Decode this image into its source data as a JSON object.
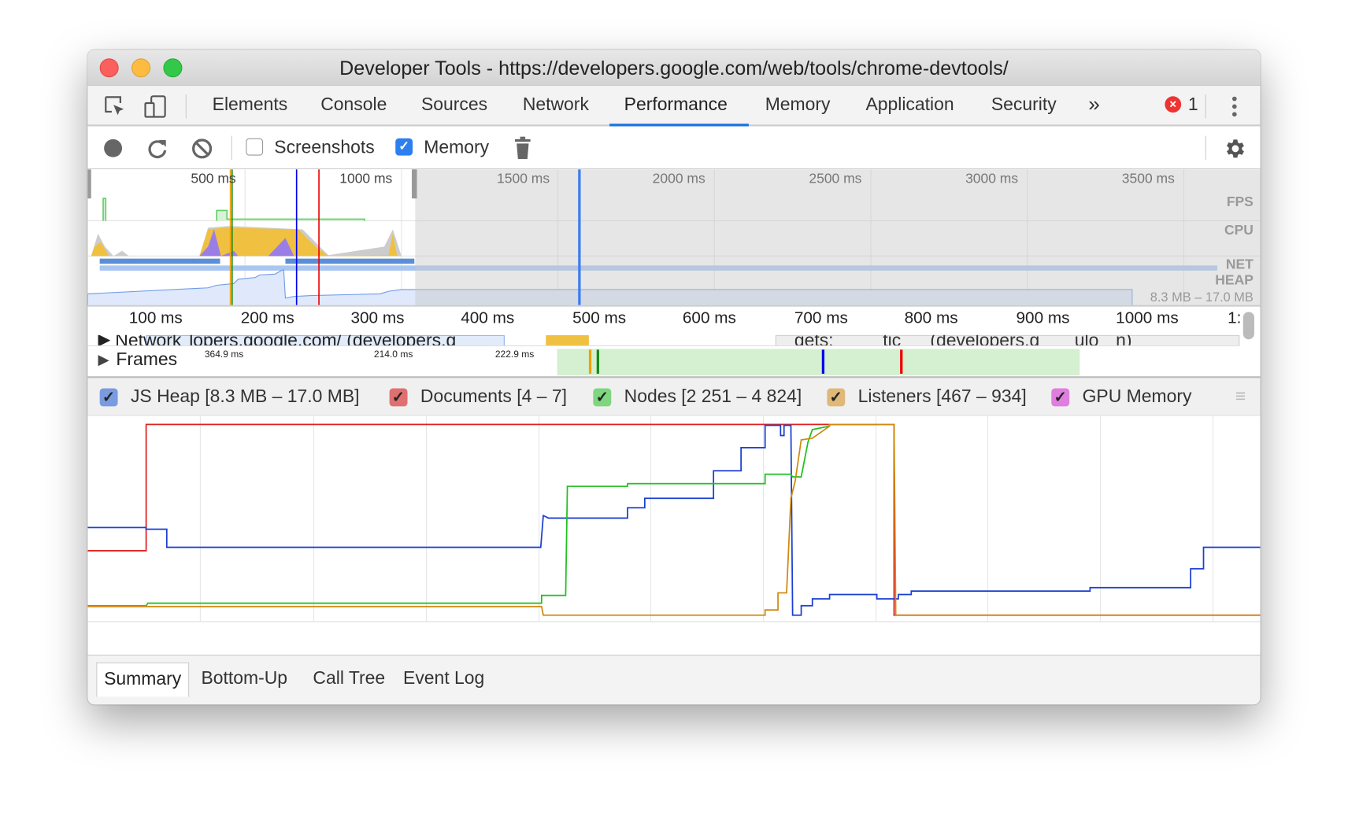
{
  "window": {
    "title": "Developer Tools - https://developers.google.com/web/tools/chrome-devtools/"
  },
  "tabs": [
    {
      "label": "Elements"
    },
    {
      "label": "Console"
    },
    {
      "label": "Sources"
    },
    {
      "label": "Network"
    },
    {
      "label": "Performance",
      "active": true
    },
    {
      "label": "Memory"
    },
    {
      "label": "Application"
    },
    {
      "label": "Security"
    }
  ],
  "tabbar": {
    "more": "»",
    "error_count": "1",
    "error_icon": "error-circle-icon"
  },
  "toolbar": {
    "screenshots_label": "Screenshots",
    "screenshots_checked": false,
    "memory_label": "Memory",
    "memory_checked": true
  },
  "overview": {
    "ticks": [
      "500 ms",
      "1000 ms",
      "1500 ms",
      "2000 ms",
      "2500 ms",
      "3000 ms",
      "3500 ms"
    ],
    "tracks": {
      "fps": "FPS",
      "cpu": "CPU",
      "net": "NET",
      "heap": "HEAP"
    },
    "heap_range": "8.3 MB – 17.0 MB"
  },
  "timeline": {
    "ticks": [
      "100 ms",
      "200 ms",
      "300 ms",
      "400 ms",
      "500 ms",
      "600 ms",
      "700 ms",
      "800 ms",
      "900 ms",
      "1000 ms",
      "1:"
    ],
    "network_label": "Network",
    "network_items": [
      "lopers.google.com/ (developers.g",
      "gets:",
      "tic",
      "(developers.g",
      "ulo",
      "n)"
    ],
    "frames_label": "Frames",
    "frame_durations": [
      "364.9 ms",
      "214.0 ms",
      "222.9 ms"
    ]
  },
  "legend": [
    {
      "label": "JS Heap [8.3 MB – 17.0 MB]",
      "color": "#7a9be0",
      "checked": true
    },
    {
      "label": "Documents [4 – 7]",
      "color": "#e07070",
      "checked": true
    },
    {
      "label": "Nodes [2 251 – 4 824]",
      "color": "#7ed67e",
      "checked": true
    },
    {
      "label": "Listeners [467 – 934]",
      "color": "#e0b878",
      "checked": true
    },
    {
      "label": "GPU Memory",
      "color": "#e07ee0",
      "checked": true
    }
  ],
  "series_colors": {
    "js_heap": "#1a3fd1",
    "documents": "#e02020",
    "nodes": "#20c020",
    "listeners": "#d08a10"
  },
  "bottom_tabs": [
    {
      "label": "Summary",
      "active": true
    },
    {
      "label": "Bottom-Up"
    },
    {
      "label": "Call Tree"
    },
    {
      "label": "Event Log"
    }
  ]
}
